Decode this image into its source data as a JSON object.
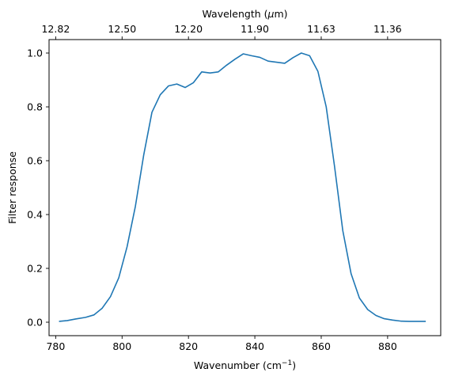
{
  "chart_data": {
    "type": "line",
    "title": "",
    "xlabel": "Wavenumber (cm",
    "xlabel_sup": "−1",
    "xlabel_tail": ")",
    "ylabel": "Filter response",
    "top_xlabel": "Wavelength (",
    "top_xlabel_mu": "μ",
    "top_xlabel_tail": "m)",
    "xlim": [
      778,
      896
    ],
    "ylim": [
      -0.05,
      1.05
    ],
    "xticks": [
      780,
      800,
      820,
      840,
      860,
      880
    ],
    "yticks": [
      "0.0",
      "0.2",
      "0.4",
      "0.6",
      "0.8",
      "1.0"
    ],
    "top_ticks": [
      "12.82",
      "12.50",
      "12.20",
      "11.90",
      "11.63",
      "11.36"
    ],
    "top_tick_wavenumbers": [
      780,
      800,
      820,
      840,
      860,
      880
    ],
    "grid": false,
    "line_color": "#1f77b4",
    "series": [
      {
        "x": [
          781,
          783.5,
          786,
          789,
          791.5,
          794,
          796.5,
          799,
          801.5,
          804,
          806.5,
          809,
          811.5,
          814,
          816.5,
          819,
          821.5,
          824,
          826.5,
          829,
          831.5,
          834,
          836.5,
          839,
          841.5,
          844,
          846.5,
          849,
          851.5,
          854,
          856.5,
          859,
          861.5,
          864,
          866.5,
          869,
          871.5,
          874,
          876.5,
          879,
          881.5,
          884,
          886.5,
          889,
          891.5
        ],
        "y": [
          0.003,
          0.006,
          0.012,
          0.018,
          0.027,
          0.052,
          0.095,
          0.165,
          0.28,
          0.43,
          0.62,
          0.78,
          0.845,
          0.878,
          0.885,
          0.872,
          0.89,
          0.93,
          0.926,
          0.93,
          0.955,
          0.977,
          0.997,
          0.99,
          0.984,
          0.97,
          0.966,
          0.962,
          0.983,
          1.0,
          0.99,
          0.932,
          0.8,
          0.58,
          0.34,
          0.18,
          0.09,
          0.047,
          0.025,
          0.013,
          0.008,
          0.004,
          0.003,
          0.003,
          0.003
        ]
      }
    ]
  }
}
